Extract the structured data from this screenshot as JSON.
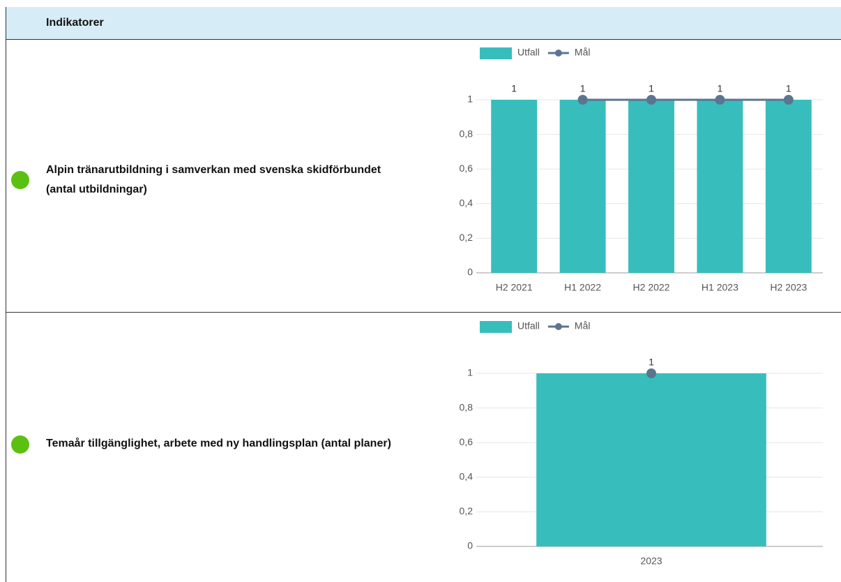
{
  "header": {
    "title": "Indikatorer"
  },
  "rows": [
    {
      "label": "Alpin tränarutbildning i samverkan med svenska skidförbundet (antal utbildningar)",
      "status_color": "#5cc010"
    },
    {
      "label": "Temaår tillgänglighet, arbete med ny handlingsplan (antal planer)",
      "status_color": "#5cc010"
    }
  ],
  "chart_data": [
    {
      "type": "bar",
      "categories": [
        "H2 2021",
        "H1 2022",
        "H2 2022",
        "H1 2023",
        "H2 2023"
      ],
      "series": [
        {
          "name": "Utfall",
          "type": "bar",
          "color": "#38bdbd",
          "values": [
            1,
            1,
            1,
            1,
            1
          ]
        },
        {
          "name": "Mål",
          "type": "line",
          "color": "#5b7590",
          "values": [
            null,
            1,
            1,
            1,
            1
          ]
        }
      ],
      "ylim": [
        0,
        1
      ],
      "yticks": [
        0,
        {
          "value": 0.2,
          "label": "0,2"
        },
        {
          "value": 0.4,
          "label": "0,4"
        },
        {
          "value": 0.6,
          "label": "0,6"
        },
        {
          "value": 0.8,
          "label": "0,8"
        },
        1
      ],
      "grid": true
    },
    {
      "type": "bar",
      "categories": [
        "2023"
      ],
      "series": [
        {
          "name": "Utfall",
          "type": "bar",
          "color": "#38bdbd",
          "values": [
            1
          ]
        },
        {
          "name": "Mål",
          "type": "line",
          "color": "#5b7590",
          "values": [
            1
          ]
        }
      ],
      "ylim": [
        0,
        1
      ],
      "yticks": [
        0,
        {
          "value": 0.2,
          "label": "0,2"
        },
        {
          "value": 0.4,
          "label": "0,4"
        },
        {
          "value": 0.6,
          "label": "0,6"
        },
        {
          "value": 0.8,
          "label": "0,8"
        },
        1
      ],
      "grid": true
    }
  ]
}
